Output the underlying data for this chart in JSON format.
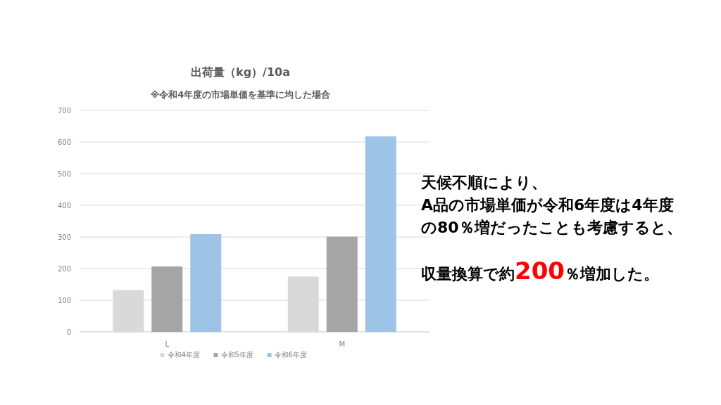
{
  "chart_data": {
    "type": "bar",
    "title": "出荷量（kg）/10a",
    "subtitle": "※令和4年度の市場単価を基準に均した場合",
    "categories": [
      "L",
      "M"
    ],
    "series": [
      {
        "name": "令和4年度",
        "color": "#d9d9d9",
        "values": [
          132,
          175
        ]
      },
      {
        "name": "令和5年度",
        "color": "#a5a5a5",
        "values": [
          207,
          301
        ]
      },
      {
        "name": "令和6年度",
        "color": "#9dc3e6",
        "values": [
          309,
          618
        ]
      }
    ],
    "ylim": [
      0,
      700
    ],
    "yticks": [
      0,
      100,
      200,
      300,
      400,
      500,
      600,
      700
    ],
    "grid": "y",
    "legend": "bottom",
    "annotations": [
      "天候不順により、",
      "A品の市場単価が令和6年度は4年度",
      "の80％増だったことも考慮すると、",
      "収量換算で約200％増加した。"
    ]
  }
}
